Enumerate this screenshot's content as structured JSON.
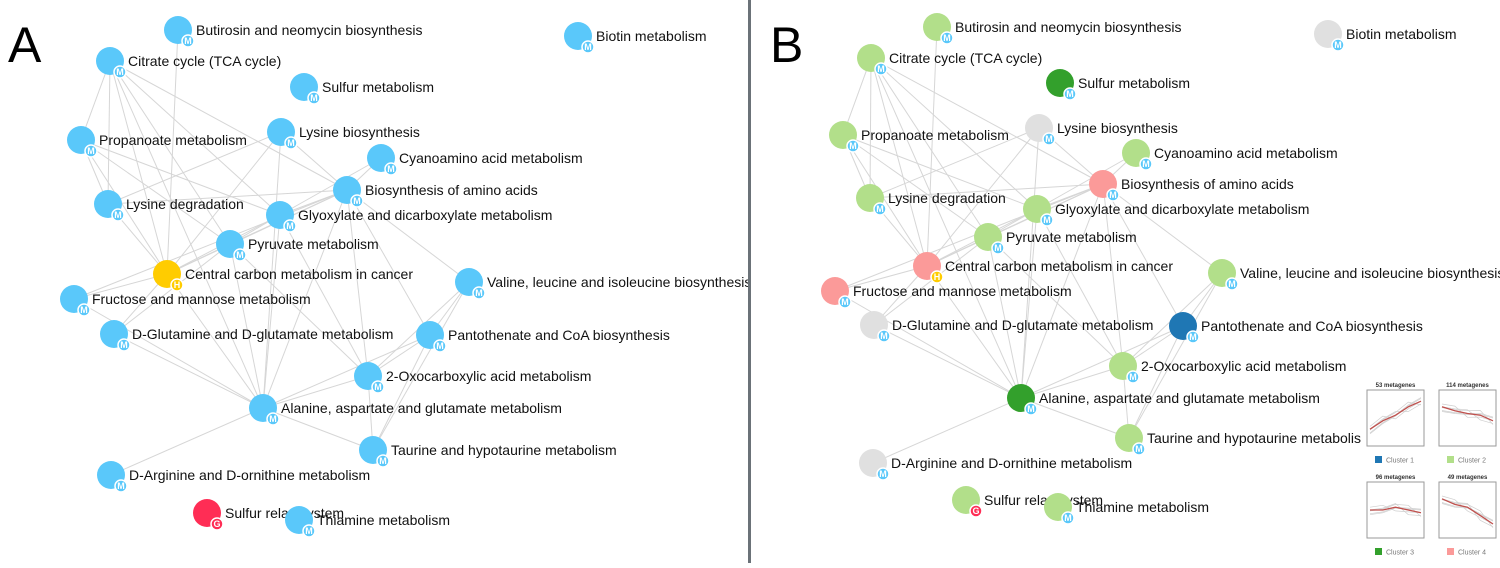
{
  "panels": [
    {
      "letter": "A"
    },
    {
      "letter": "B"
    }
  ],
  "colors": {
    "edge": "#d6d6d6",
    "divider": "#6b7278",
    "type_M": "#5ac8fa",
    "type_H": "#ffcc00",
    "type_G": "#ff2d55",
    "panel_a_node": "#5ac8fa",
    "cluster_1": "#1f77b4",
    "cluster_2": "#b2df8a",
    "cluster_3": "#33a02c",
    "cluster_4": "#fb9a99",
    "no_cluster": "#e0e0e0"
  },
  "badges": {
    "M": "M",
    "H": "H",
    "G": "G"
  },
  "nodes": [
    {
      "id": "butirosin",
      "label": "Butirosin and neomycin biosynthesis",
      "type": "M",
      "cluster": "2"
    },
    {
      "id": "biotin",
      "label": "Biotin metabolism",
      "type": "M",
      "cluster": "none"
    },
    {
      "id": "tca",
      "label": "Citrate cycle (TCA cycle)",
      "type": "M",
      "cluster": "2"
    },
    {
      "id": "sulfur",
      "label": "Sulfur metabolism",
      "type": "M",
      "cluster": "3"
    },
    {
      "id": "propanoate",
      "label": "Propanoate metabolism",
      "type": "M",
      "cluster": "2"
    },
    {
      "id": "lysbio",
      "label": "Lysine biosynthesis",
      "type": "M",
      "cluster": "none"
    },
    {
      "id": "cyano",
      "label": "Cyanoamino acid metabolism",
      "type": "M",
      "cluster": "2"
    },
    {
      "id": "bioaa",
      "label": "Biosynthesis of amino acids",
      "type": "M",
      "cluster": "4"
    },
    {
      "id": "lysdeg",
      "label": "Lysine degradation",
      "type": "M",
      "cluster": "2"
    },
    {
      "id": "glyox",
      "label": "Glyoxylate and dicarboxylate metabolism",
      "type": "M",
      "cluster": "2"
    },
    {
      "id": "pyruvate",
      "label": "Pyruvate metabolism",
      "type": "M",
      "cluster": "2"
    },
    {
      "id": "central",
      "label": "Central carbon metabolism in cancer",
      "type": "H",
      "cluster": "4"
    },
    {
      "id": "valine",
      "label": "Valine, leucine and isoleucine biosynthesis",
      "type": "M",
      "cluster": "2"
    },
    {
      "id": "fructose",
      "label": "Fructose and mannose metabolism",
      "type": "M",
      "cluster": "4"
    },
    {
      "id": "dglut",
      "label": "D-Glutamine and D-glutamate metabolism",
      "type": "M",
      "cluster": "none"
    },
    {
      "id": "panto",
      "label": "Pantothenate and CoA biosynthesis",
      "type": "M",
      "cluster": "1"
    },
    {
      "id": "oxo",
      "label": "2-Oxocarboxylic acid metabolism",
      "type": "M",
      "cluster": "2"
    },
    {
      "id": "alanine",
      "label": "Alanine, aspartate and glutamate metabolism",
      "type": "M",
      "cluster": "3"
    },
    {
      "id": "taurine",
      "label": "Taurine and hypotaurine metabolism",
      "type": "M",
      "cluster": "2"
    },
    {
      "id": "darg",
      "label": "D-Arginine and D-ornithine metabolism",
      "type": "M",
      "cluster": "none"
    },
    {
      "id": "sulfrelay",
      "label": "Sulfur relay system",
      "type": "G",
      "cluster": "2"
    },
    {
      "id": "thiamine",
      "label": "Thiamine metabolism",
      "type": "M",
      "cluster": "2"
    }
  ],
  "edges": [
    [
      "tca",
      "propanoate"
    ],
    [
      "tca",
      "lysdeg"
    ],
    [
      "tca",
      "central"
    ],
    [
      "tca",
      "glyox"
    ],
    [
      "tca",
      "pyruvate"
    ],
    [
      "tca",
      "bioaa"
    ],
    [
      "tca",
      "alanine"
    ],
    [
      "butirosin",
      "central"
    ],
    [
      "propanoate",
      "lysdeg"
    ],
    [
      "propanoate",
      "central"
    ],
    [
      "propanoate",
      "glyox"
    ],
    [
      "propanoate",
      "pyruvate"
    ],
    [
      "lysbio",
      "bioaa"
    ],
    [
      "lysbio",
      "lysdeg"
    ],
    [
      "lysbio",
      "central"
    ],
    [
      "lysbio",
      "alanine"
    ],
    [
      "cyano",
      "glyox"
    ],
    [
      "cyano",
      "bioaa"
    ],
    [
      "bioaa",
      "glyox"
    ],
    [
      "bioaa",
      "pyruvate"
    ],
    [
      "bioaa",
      "central"
    ],
    [
      "bioaa",
      "valine"
    ],
    [
      "bioaa",
      "oxo"
    ],
    [
      "bioaa",
      "alanine"
    ],
    [
      "bioaa",
      "lysdeg"
    ],
    [
      "bioaa",
      "fructose"
    ],
    [
      "bioaa",
      "panto"
    ],
    [
      "lysdeg",
      "central"
    ],
    [
      "glyox",
      "pyruvate"
    ],
    [
      "glyox",
      "central"
    ],
    [
      "glyox",
      "alanine"
    ],
    [
      "glyox",
      "oxo"
    ],
    [
      "pyruvate",
      "central"
    ],
    [
      "pyruvate",
      "alanine"
    ],
    [
      "pyruvate",
      "oxo"
    ],
    [
      "pyruvate",
      "dglut"
    ],
    [
      "central",
      "fructose"
    ],
    [
      "central",
      "dglut"
    ],
    [
      "central",
      "alanine"
    ],
    [
      "fructose",
      "alanine"
    ],
    [
      "valine",
      "oxo"
    ],
    [
      "valine",
      "panto"
    ],
    [
      "valine",
      "taurine"
    ],
    [
      "panto",
      "oxo"
    ],
    [
      "panto",
      "alanine"
    ],
    [
      "panto",
      "taurine"
    ],
    [
      "dglut",
      "alanine"
    ],
    [
      "oxo",
      "alanine"
    ],
    [
      "oxo",
      "taurine"
    ],
    [
      "alanine",
      "taurine"
    ],
    [
      "alanine",
      "darg"
    ]
  ],
  "cluster_profiles": [
    {
      "title": "53 metagenes",
      "legend": "Cluster 1",
      "cluster": "1",
      "trend": [
        0.3,
        0.45,
        0.55,
        0.7,
        0.8
      ]
    },
    {
      "title": "114 metagenes",
      "legend": "Cluster 2",
      "cluster": "2",
      "trend": [
        0.7,
        0.63,
        0.58,
        0.55,
        0.45
      ]
    },
    {
      "title": "96 metagenes",
      "legend": "Cluster 3",
      "cluster": "3",
      "trend": [
        0.5,
        0.5,
        0.55,
        0.5,
        0.45
      ]
    },
    {
      "title": "49 metagenes",
      "legend": "Cluster 4",
      "cluster": "4",
      "trend": [
        0.7,
        0.6,
        0.55,
        0.4,
        0.25
      ]
    }
  ]
}
